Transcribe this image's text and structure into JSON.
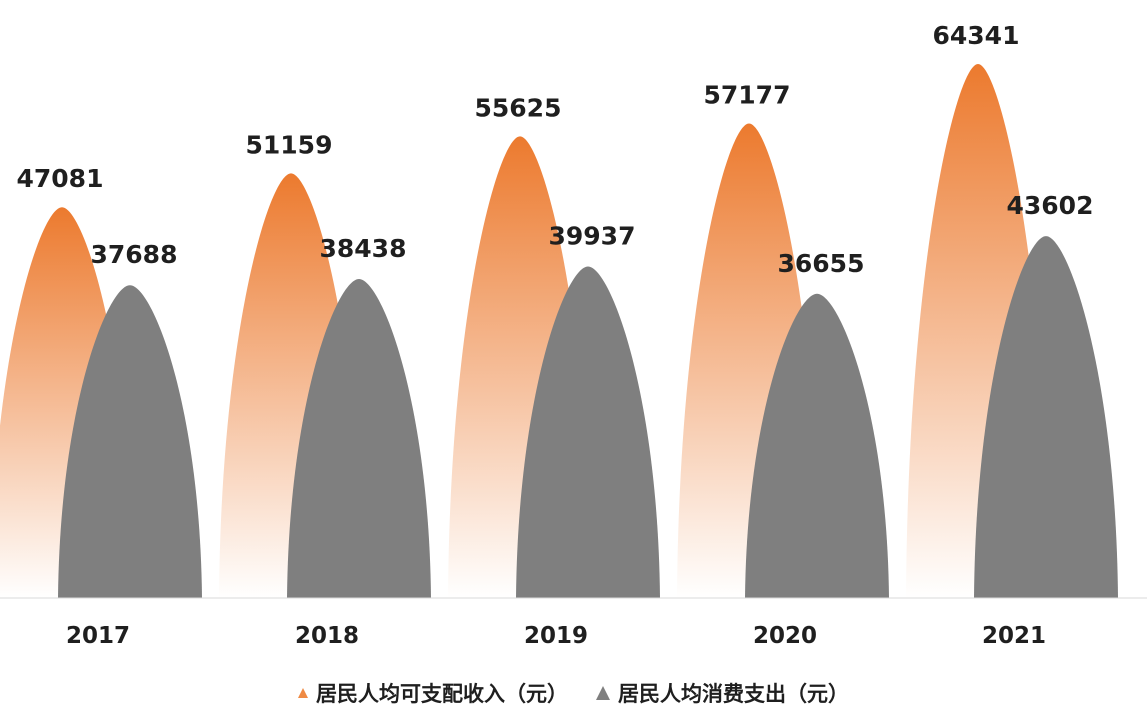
{
  "chart_data": {
    "type": "bar",
    "categories": [
      "2017",
      "2018",
      "2019",
      "2020",
      "2021"
    ],
    "series": [
      {
        "name": "居民人均可支配收入（元）",
        "values": [
          47081,
          51159,
          55625,
          57177,
          64341
        ],
        "color": "#ef8a44"
      },
      {
        "name": "居民人均消费支出（元）",
        "values": [
          37688,
          38438,
          39937,
          36655,
          43602
        ],
        "color": "#7f7f7f"
      }
    ],
    "ylim": [
      0,
      64341
    ],
    "grid": false,
    "legend_position": "bottom",
    "bar_shape": "peak"
  }
}
